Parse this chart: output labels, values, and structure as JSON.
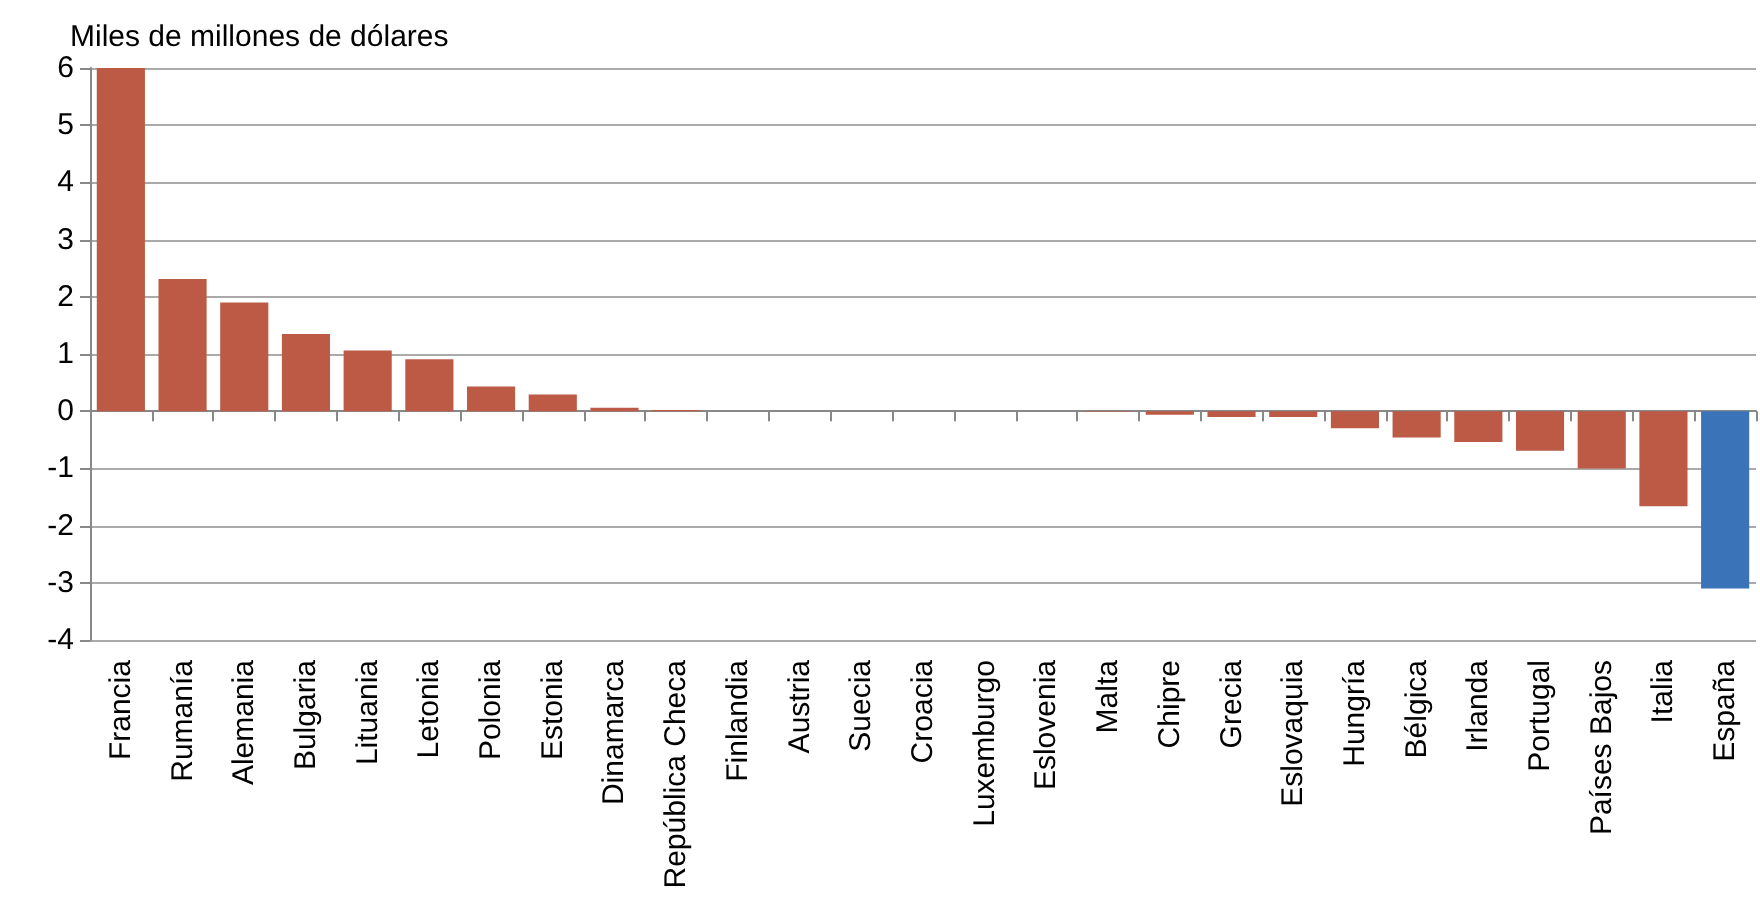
{
  "chart_data": {
    "type": "bar",
    "ylabel": "Miles de millones de dólares",
    "categories": [
      "Francia",
      "Rumanía",
      "Alemania",
      "Bulgaria",
      "Lituania",
      "Letonia",
      "Polonia",
      "Estonia",
      "Dinamarca",
      "República Checa",
      "Finlandia",
      "Austria",
      "Suecia",
      "Croacia",
      "Luxemburgo",
      "Eslovenia",
      "Malta",
      "Chipre",
      "Grecia",
      "Eslovaquia",
      "Hungría",
      "Bélgica",
      "Irlanda",
      "Portugal",
      "Países Bajos",
      "Italia",
      "España"
    ],
    "values": [
      6,
      2.31,
      1.9,
      1.35,
      1.06,
      0.91,
      0.43,
      0.29,
      0.06,
      0.02,
      0,
      0,
      0,
      0,
      0,
      0,
      -0.01,
      -0.06,
      -0.1,
      -0.1,
      -0.3,
      -0.46,
      -0.54,
      -0.69,
      -1.0,
      -1.66,
      -3.1
    ],
    "colors": [
      "#bc5a45",
      "#bc5a45",
      "#bc5a45",
      "#bc5a45",
      "#bc5a45",
      "#bc5a45",
      "#bc5a45",
      "#bc5a45",
      "#bc5a45",
      "#bc5a45",
      "#bc5a45",
      "#bc5a45",
      "#bc5a45",
      "#bc5a45",
      "#bc5a45",
      "#bc5a45",
      "#bc5a45",
      "#bc5a45",
      "#bc5a45",
      "#bc5a45",
      "#bc5a45",
      "#bc5a45",
      "#bc5a45",
      "#bc5a45",
      "#bc5a45",
      "#bc5a45",
      "#3a73b8"
    ],
    "ylim": [
      -4,
      6
    ],
    "yticks": [
      -4,
      -3,
      -2,
      -1,
      0,
      1,
      2,
      3,
      4,
      5,
      6
    ],
    "grid": "y"
  }
}
